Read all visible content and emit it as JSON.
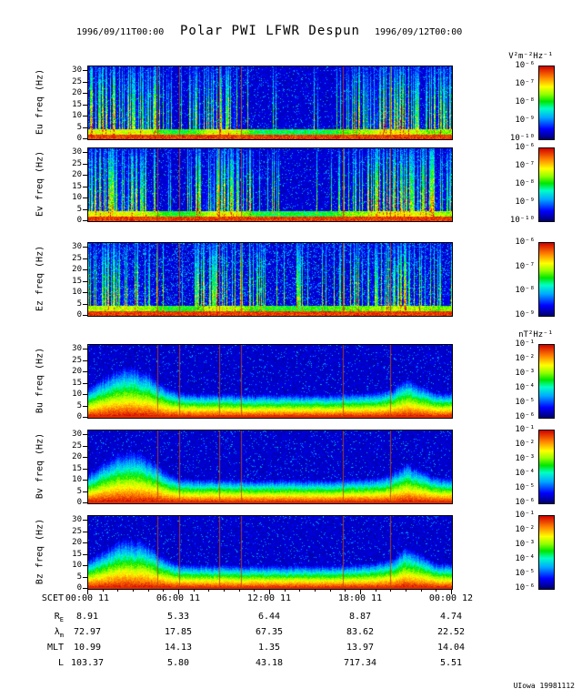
{
  "header": {
    "title": "Polar PWI LFWR Despun",
    "date_left": "1996/09/11T00:00",
    "date_right": "1996/09/12T00:00"
  },
  "footer": {
    "credit": "UIowa 19981112"
  },
  "chart_data": {
    "type": "heatmap",
    "title": "Polar PWI LFWR Despun",
    "time_range": [
      "1996/09/11T00:00",
      "1996/09/12T00:00"
    ],
    "x_axis": {
      "label": "SCET",
      "ticks": [
        "00:00 11",
        "06:00 11",
        "12:00 11",
        "18:00 11",
        "00:00 12"
      ],
      "range_hours": [
        0,
        24
      ]
    },
    "freq_ticks": [
      0,
      5,
      10,
      15,
      20,
      25,
      30
    ],
    "ylim": [
      0,
      32
    ],
    "y_unit": "Hz",
    "time_markers": [
      0.19,
      0.25,
      0.36,
      0.42,
      0.7,
      0.83
    ],
    "panels": [
      {
        "id": "eu",
        "ylabel": "Eu freq (Hz)",
        "kind": "electric",
        "speckle": 0.06,
        "colorbar": {
          "unit": "V²m⁻²Hz⁻¹",
          "ticks": [
            "10⁻⁶",
            "10⁻⁷",
            "10⁻⁸",
            "10⁻⁹",
            "10⁻¹⁰"
          ]
        },
        "profile": [
          0.85,
          0.9,
          0.85,
          0.82,
          0.75,
          0.3,
          0.25,
          0.32,
          0.8,
          0.9,
          0.75,
          0.2,
          0.15,
          0.15,
          0.15,
          0.16,
          0.2,
          0.5,
          0.6,
          0.85,
          0.92,
          0.9,
          0.6,
          0.5,
          0.6
        ]
      },
      {
        "id": "ev",
        "ylabel": "Ev freq (Hz)",
        "kind": "electric",
        "speckle": 0.06,
        "colorbar": {
          "ticks": [
            "10⁻⁶",
            "10⁻⁷",
            "10⁻⁸",
            "10⁻⁹",
            "10⁻¹⁰"
          ]
        },
        "profile": [
          0.85,
          0.9,
          0.86,
          0.82,
          0.72,
          0.3,
          0.25,
          0.32,
          0.8,
          0.9,
          0.78,
          0.25,
          0.2,
          0.2,
          0.2,
          0.2,
          0.25,
          0.5,
          0.6,
          0.8,
          0.95,
          0.95,
          0.88,
          0.7,
          0.6
        ]
      },
      {
        "id": "ez",
        "ylabel": "Ez freq (Hz)",
        "kind": "electric",
        "speckle": 0.16,
        "colorbar": {
          "ticks": [
            "10⁻⁶",
            "10⁻⁷",
            "10⁻⁸",
            "10⁻⁹"
          ]
        },
        "profile": [
          0.7,
          0.75,
          0.72,
          0.68,
          0.6,
          0.28,
          0.22,
          0.35,
          0.7,
          0.8,
          0.6,
          0.35,
          0.3,
          0.3,
          0.3,
          0.3,
          0.35,
          0.45,
          0.5,
          0.6,
          0.72,
          0.75,
          0.6,
          0.5,
          0.52
        ]
      },
      {
        "id": "bu",
        "ylabel": "Bu freq (Hz)",
        "kind": "magnetic",
        "speckle": 0.05,
        "colorbar": {
          "unit": "nT²Hz⁻¹",
          "ticks": [
            "10⁻¹",
            "10⁻²",
            "10⁻³",
            "10⁻⁴",
            "10⁻⁵",
            "10⁻⁶"
          ]
        },
        "profile": [
          0.42,
          0.58,
          0.7,
          0.73,
          0.64,
          0.45,
          0.36,
          0.34,
          0.34,
          0.34,
          0.33,
          0.33,
          0.33,
          0.33,
          0.33,
          0.33,
          0.33,
          0.34,
          0.35,
          0.36,
          0.4,
          0.56,
          0.46,
          0.36,
          0.35
        ]
      },
      {
        "id": "bv",
        "ylabel": "Bv freq (Hz)",
        "kind": "magnetic",
        "speckle": 0.05,
        "colorbar": {
          "ticks": [
            "10⁻¹",
            "10⁻²",
            "10⁻³",
            "10⁻⁴",
            "10⁻⁵",
            "10⁻⁶"
          ]
        },
        "profile": [
          0.42,
          0.58,
          0.71,
          0.74,
          0.65,
          0.45,
          0.36,
          0.34,
          0.34,
          0.34,
          0.33,
          0.33,
          0.33,
          0.33,
          0.33,
          0.33,
          0.33,
          0.34,
          0.35,
          0.36,
          0.41,
          0.58,
          0.47,
          0.37,
          0.35
        ]
      },
      {
        "id": "bz",
        "ylabel": "Bz freq (Hz)",
        "kind": "magnetic",
        "speckle": 0.05,
        "colorbar": {
          "ticks": [
            "10⁻¹",
            "10⁻²",
            "10⁻³",
            "10⁻⁴",
            "10⁻⁵",
            "10⁻⁶"
          ]
        },
        "profile": [
          0.4,
          0.55,
          0.68,
          0.71,
          0.63,
          0.44,
          0.35,
          0.34,
          0.34,
          0.34,
          0.33,
          0.33,
          0.33,
          0.33,
          0.33,
          0.33,
          0.33,
          0.34,
          0.35,
          0.37,
          0.42,
          0.6,
          0.48,
          0.37,
          0.35
        ]
      }
    ],
    "ephemeris": {
      "rows": [
        {
          "label": {
            "text": "SCET"
          },
          "values": [
            "00:00 11",
            "06:00 11",
            "12:00 11",
            "18:00 11",
            "00:00 12"
          ]
        },
        {
          "label": {
            "text": "R",
            "sub": "E"
          },
          "values": [
            "8.91",
            "5.33",
            "6.44",
            "8.87",
            "4.74"
          ]
        },
        {
          "label": {
            "text": "λ",
            "sub": "m"
          },
          "values": [
            "72.97",
            "17.85",
            "67.35",
            "83.62",
            "22.52"
          ]
        },
        {
          "label": {
            "text": "MLT"
          },
          "values": [
            "10.99",
            "14.13",
            "1.35",
            "13.97",
            "14.04"
          ]
        },
        {
          "label": {
            "text": "L"
          },
          "values": [
            "103.37",
            "5.80",
            "43.18",
            "717.34",
            "5.51"
          ]
        }
      ]
    }
  }
}
